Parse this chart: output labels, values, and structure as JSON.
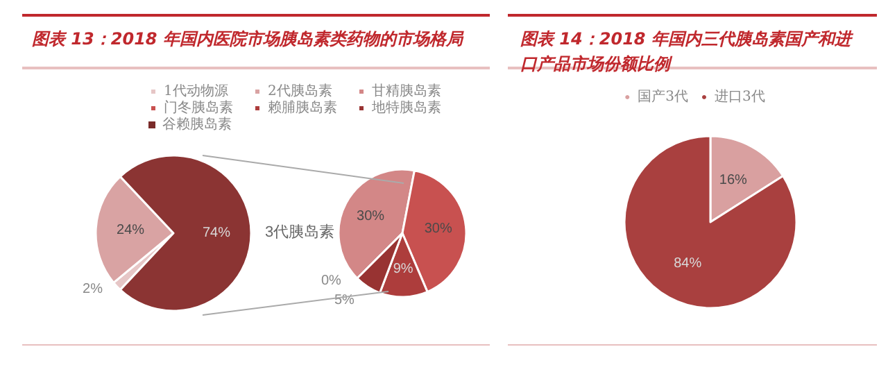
{
  "chart_data": [
    {
      "type": "pie",
      "title": "图表 13：2018 年国内医院市场胰岛素类药物的市场格局",
      "categories": [
        "1代动物源",
        "2代胰岛素",
        null
      ],
      "values": [
        2,
        24,
        74
      ],
      "value_labels": [
        "2%",
        "24%",
        "74%"
      ],
      "colors": [
        "#e6c6c6",
        "#d9a3a3",
        "#8b3433"
      ],
      "data_labels": true,
      "legend": "top",
      "annotations": [
        "3代胰岛素"
      ]
    },
    {
      "type": "pie",
      "categories": [
        "甘精胰岛素",
        "门冬胰岛素",
        "赖脯胰岛素",
        "地特胰岛素",
        "谷赖胰岛素"
      ],
      "values": [
        30,
        30,
        9,
        5,
        0
      ],
      "value_labels": [
        "30%",
        "30%",
        "9%",
        "5%",
        "0%"
      ],
      "colors": [
        "#d38787",
        "#c85150",
        "#ad3d3c",
        "#983332",
        "#7a2b2a"
      ],
      "data_labels": true,
      "legend": "top"
    },
    {
      "type": "pie",
      "title": "图表 14：2018 年国内三代胰岛素国产和进口产品市场份额比例",
      "categories": [
        "国产3代",
        "进口3代"
      ],
      "values": [
        16,
        84
      ],
      "value_labels": [
        "16%",
        "84%"
      ],
      "colors": [
        "#d9a0a0",
        "#a9403f"
      ],
      "data_labels": true,
      "legend": "top"
    }
  ]
}
